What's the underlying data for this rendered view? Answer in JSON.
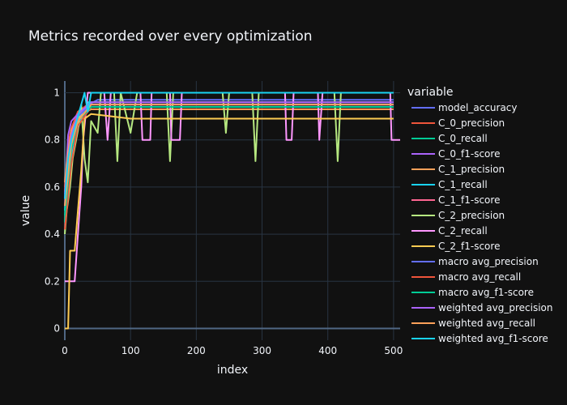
{
  "chart_data": {
    "type": "line",
    "title": "Metrics recorded over every optimization",
    "xlabel": "index",
    "ylabel": "value",
    "xlim": [
      0,
      510
    ],
    "ylim": [
      -0.05,
      1.05
    ],
    "x_ticks": [
      0,
      100,
      200,
      300,
      400,
      500
    ],
    "y_ticks": [
      0,
      0.2,
      0.4,
      0.6,
      0.8,
      1
    ],
    "grid": true,
    "legend": {
      "title": "variable",
      "position": "right"
    },
    "series": [
      {
        "name": "model_accuracy",
        "color": "#636efa",
        "points": [
          [
            0,
            0.52
          ],
          [
            5,
            0.7
          ],
          [
            10,
            0.82
          ],
          [
            15,
            0.86
          ],
          [
            20,
            0.9
          ],
          [
            30,
            0.94
          ],
          [
            50,
            0.97
          ],
          [
            100,
            0.97
          ],
          [
            200,
            0.97
          ],
          [
            300,
            0.97
          ],
          [
            400,
            0.97
          ],
          [
            500,
            0.97
          ]
        ]
      },
      {
        "name": "C_0_precision",
        "color": "#EF553B",
        "points": [
          [
            0,
            0.6
          ],
          [
            5,
            0.78
          ],
          [
            10,
            0.85
          ],
          [
            20,
            0.92
          ],
          [
            40,
            0.96
          ],
          [
            100,
            0.96
          ],
          [
            300,
            0.96
          ],
          [
            500,
            0.96
          ]
        ]
      },
      {
        "name": "C_0_recall",
        "color": "#00cc96",
        "points": [
          [
            0,
            0.45
          ],
          [
            5,
            0.7
          ],
          [
            10,
            0.8
          ],
          [
            20,
            0.88
          ],
          [
            40,
            0.95
          ],
          [
            120,
            0.95
          ],
          [
            300,
            0.95
          ],
          [
            500,
            0.95
          ]
        ]
      },
      {
        "name": "C_0_f1-score",
        "color": "#ab63fa",
        "points": [
          [
            0,
            0.55
          ],
          [
            5,
            0.82
          ],
          [
            10,
            0.88
          ],
          [
            20,
            0.91
          ],
          [
            40,
            0.95
          ],
          [
            200,
            0.95
          ],
          [
            500,
            0.95
          ]
        ]
      },
      {
        "name": "C_1_precision",
        "color": "#FFA15A",
        "points": [
          [
            0,
            0.62
          ],
          [
            5,
            0.75
          ],
          [
            10,
            0.84
          ],
          [
            20,
            0.9
          ],
          [
            40,
            0.93
          ],
          [
            150,
            0.93
          ],
          [
            400,
            0.93
          ],
          [
            500,
            0.93
          ]
        ]
      },
      {
        "name": "C_1_recall",
        "color": "#19d3f3",
        "points": [
          [
            0,
            0.5
          ],
          [
            5,
            0.64
          ],
          [
            10,
            0.73
          ],
          [
            20,
            0.85
          ],
          [
            35,
            0.96
          ],
          [
            100,
            0.96
          ],
          [
            500,
            0.96
          ]
        ]
      },
      {
        "name": "C_1_f1-score",
        "color": "#FF6692",
        "points": [
          [
            0,
            0.58
          ],
          [
            5,
            0.72
          ],
          [
            10,
            0.82
          ],
          [
            20,
            0.89
          ],
          [
            40,
            0.94
          ],
          [
            300,
            0.94
          ],
          [
            500,
            0.94
          ]
        ]
      },
      {
        "name": "C_2_precision",
        "color": "#B6E880",
        "points": [
          [
            0,
            0.4
          ],
          [
            3,
            0.5
          ],
          [
            8,
            0.6
          ],
          [
            12,
            0.72
          ],
          [
            20,
            0.84
          ],
          [
            25,
            0.95
          ],
          [
            30,
            0.72
          ],
          [
            35,
            0.62
          ],
          [
            40,
            0.88
          ],
          [
            50,
            0.83
          ],
          [
            55,
            1
          ],
          [
            75,
            1
          ],
          [
            80,
            0.71
          ],
          [
            85,
            1
          ],
          [
            100,
            0.83
          ],
          [
            110,
            1
          ],
          [
            155,
            1
          ],
          [
            160,
            0.71
          ],
          [
            165,
            1
          ],
          [
            240,
            1
          ],
          [
            245,
            0.83
          ],
          [
            250,
            1
          ],
          [
            285,
            1
          ],
          [
            290,
            0.71
          ],
          [
            295,
            1
          ],
          [
            410,
            1
          ],
          [
            415,
            0.71
          ],
          [
            420,
            1
          ],
          [
            500,
            1
          ]
        ]
      },
      {
        "name": "C_2_recall",
        "color": "#FF97FF",
        "points": [
          [
            0,
            0.2
          ],
          [
            5,
            0.2
          ],
          [
            10,
            0.2
          ],
          [
            15,
            0.2
          ],
          [
            20,
            0.4
          ],
          [
            25,
            0.6
          ],
          [
            28,
            0.8
          ],
          [
            35,
            1
          ],
          [
            60,
            1
          ],
          [
            65,
            0.8
          ],
          [
            70,
            1
          ],
          [
            115,
            1
          ],
          [
            118,
            0.8
          ],
          [
            130,
            0.8
          ],
          [
            132,
            1
          ],
          [
            160,
            1
          ],
          [
            162,
            0.8
          ],
          [
            175,
            0.8
          ],
          [
            178,
            1
          ],
          [
            335,
            1
          ],
          [
            337,
            0.8
          ],
          [
            345,
            0.8
          ],
          [
            348,
            1
          ],
          [
            385,
            1
          ],
          [
            387,
            0.8
          ],
          [
            392,
            1
          ],
          [
            495,
            1
          ],
          [
            497,
            0.8
          ],
          [
            510,
            0.8
          ]
        ]
      },
      {
        "name": "C_2_f1-score",
        "color": "#FECB52",
        "points": [
          [
            0,
            0
          ],
          [
            5,
            0
          ],
          [
            8,
            0.33
          ],
          [
            15,
            0.33
          ],
          [
            20,
            0.5
          ],
          [
            25,
            0.67
          ],
          [
            30,
            0.89
          ],
          [
            40,
            0.91
          ],
          [
            100,
            0.89
          ],
          [
            200,
            0.89
          ],
          [
            300,
            0.89
          ],
          [
            400,
            0.89
          ],
          [
            500,
            0.89
          ]
        ]
      },
      {
        "name": "macro avg_precision",
        "color": "#636efa",
        "points": [
          [
            0,
            0.55
          ],
          [
            10,
            0.8
          ],
          [
            20,
            0.9
          ],
          [
            40,
            0.95
          ],
          [
            500,
            0.95
          ]
        ]
      },
      {
        "name": "macro avg_recall",
        "color": "#EF553B",
        "points": [
          [
            0,
            0.42
          ],
          [
            10,
            0.7
          ],
          [
            20,
            0.86
          ],
          [
            40,
            0.94
          ],
          [
            500,
            0.94
          ]
        ]
      },
      {
        "name": "macro avg_f1-score",
        "color": "#00cc96",
        "points": [
          [
            0,
            0.48
          ],
          [
            10,
            0.76
          ],
          [
            20,
            0.88
          ],
          [
            40,
            0.94
          ],
          [
            500,
            0.94
          ]
        ]
      },
      {
        "name": "weighted avg_precision",
        "color": "#ab63fa",
        "points": [
          [
            0,
            0.57
          ],
          [
            10,
            0.82
          ],
          [
            20,
            0.91
          ],
          [
            40,
            0.96
          ],
          [
            500,
            0.96
          ]
        ]
      },
      {
        "name": "weighted avg_recall",
        "color": "#FFA15A",
        "points": [
          [
            0,
            0.52
          ],
          [
            10,
            0.78
          ],
          [
            20,
            0.88
          ],
          [
            40,
            0.95
          ],
          [
            500,
            0.95
          ]
        ]
      },
      {
        "name": "weighted avg_f1-score",
        "color": "#19d3f3",
        "points": [
          [
            0,
            0.55
          ],
          [
            5,
            0.72
          ],
          [
            10,
            0.8
          ],
          [
            20,
            0.9
          ],
          [
            30,
            1
          ],
          [
            35,
            0.92
          ],
          [
            40,
            1
          ],
          [
            500,
            1
          ]
        ]
      }
    ]
  }
}
